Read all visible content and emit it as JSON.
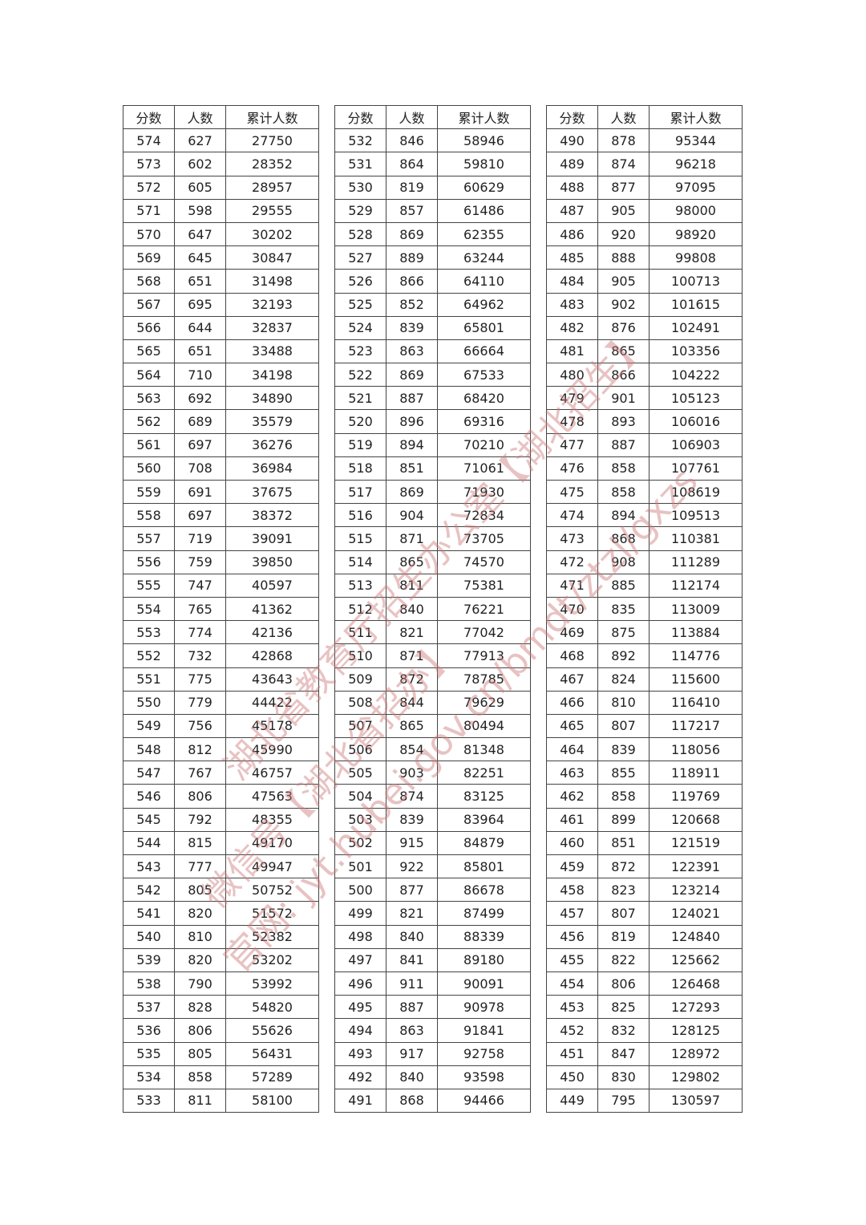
{
  "headers": [
    "分数",
    "人数",
    "累计人数"
  ],
  "tables": [
    {
      "rows": [
        [
          "574",
          "627",
          "27750"
        ],
        [
          "573",
          "602",
          "28352"
        ],
        [
          "572",
          "605",
          "28957"
        ],
        [
          "571",
          "598",
          "29555"
        ],
        [
          "570",
          "647",
          "30202"
        ],
        [
          "569",
          "645",
          "30847"
        ],
        [
          "568",
          "651",
          "31498"
        ],
        [
          "567",
          "695",
          "32193"
        ],
        [
          "566",
          "644",
          "32837"
        ],
        [
          "565",
          "651",
          "33488"
        ],
        [
          "564",
          "710",
          "34198"
        ],
        [
          "563",
          "692",
          "34890"
        ],
        [
          "562",
          "689",
          "35579"
        ],
        [
          "561",
          "697",
          "36276"
        ],
        [
          "560",
          "708",
          "36984"
        ],
        [
          "559",
          "691",
          "37675"
        ],
        [
          "558",
          "697",
          "38372"
        ],
        [
          "557",
          "719",
          "39091"
        ],
        [
          "556",
          "759",
          "39850"
        ],
        [
          "555",
          "747",
          "40597"
        ],
        [
          "554",
          "765",
          "41362"
        ],
        [
          "553",
          "774",
          "42136"
        ],
        [
          "552",
          "732",
          "42868"
        ],
        [
          "551",
          "775",
          "43643"
        ],
        [
          "550",
          "779",
          "44422"
        ],
        [
          "549",
          "756",
          "45178"
        ],
        [
          "548",
          "812",
          "45990"
        ],
        [
          "547",
          "767",
          "46757"
        ],
        [
          "546",
          "806",
          "47563"
        ],
        [
          "545",
          "792",
          "48355"
        ],
        [
          "544",
          "815",
          "49170"
        ],
        [
          "543",
          "777",
          "49947"
        ],
        [
          "542",
          "805",
          "50752"
        ],
        [
          "541",
          "820",
          "51572"
        ],
        [
          "540",
          "810",
          "52382"
        ],
        [
          "539",
          "820",
          "53202"
        ],
        [
          "538",
          "790",
          "53992"
        ],
        [
          "537",
          "828",
          "54820"
        ],
        [
          "536",
          "806",
          "55626"
        ],
        [
          "535",
          "805",
          "56431"
        ],
        [
          "534",
          "858",
          "57289"
        ],
        [
          "533",
          "811",
          "58100"
        ]
      ]
    },
    {
      "rows": [
        [
          "532",
          "846",
          "58946"
        ],
        [
          "531",
          "864",
          "59810"
        ],
        [
          "530",
          "819",
          "60629"
        ],
        [
          "529",
          "857",
          "61486"
        ],
        [
          "528",
          "869",
          "62355"
        ],
        [
          "527",
          "889",
          "63244"
        ],
        [
          "526",
          "866",
          "64110"
        ],
        [
          "525",
          "852",
          "64962"
        ],
        [
          "524",
          "839",
          "65801"
        ],
        [
          "523",
          "863",
          "66664"
        ],
        [
          "522",
          "869",
          "67533"
        ],
        [
          "521",
          "887",
          "68420"
        ],
        [
          "520",
          "896",
          "69316"
        ],
        [
          "519",
          "894",
          "70210"
        ],
        [
          "518",
          "851",
          "71061"
        ],
        [
          "517",
          "869",
          "71930"
        ],
        [
          "516",
          "904",
          "72834"
        ],
        [
          "515",
          "871",
          "73705"
        ],
        [
          "514",
          "865",
          "74570"
        ],
        [
          "513",
          "811",
          "75381"
        ],
        [
          "512",
          "840",
          "76221"
        ],
        [
          "511",
          "821",
          "77042"
        ],
        [
          "510",
          "871",
          "77913"
        ],
        [
          "509",
          "872",
          "78785"
        ],
        [
          "508",
          "844",
          "79629"
        ],
        [
          "507",
          "865",
          "80494"
        ],
        [
          "506",
          "854",
          "81348"
        ],
        [
          "505",
          "903",
          "82251"
        ],
        [
          "504",
          "874",
          "83125"
        ],
        [
          "503",
          "839",
          "83964"
        ],
        [
          "502",
          "915",
          "84879"
        ],
        [
          "501",
          "922",
          "85801"
        ],
        [
          "500",
          "877",
          "86678"
        ],
        [
          "499",
          "821",
          "87499"
        ],
        [
          "498",
          "840",
          "88339"
        ],
        [
          "497",
          "841",
          "89180"
        ],
        [
          "496",
          "911",
          "90091"
        ],
        [
          "495",
          "887",
          "90978"
        ],
        [
          "494",
          "863",
          "91841"
        ],
        [
          "493",
          "917",
          "92758"
        ],
        [
          "492",
          "840",
          "93598"
        ],
        [
          "491",
          "868",
          "94466"
        ]
      ]
    },
    {
      "rows": [
        [
          "490",
          "878",
          "95344"
        ],
        [
          "489",
          "874",
          "96218"
        ],
        [
          "488",
          "877",
          "97095"
        ],
        [
          "487",
          "905",
          "98000"
        ],
        [
          "486",
          "920",
          "98920"
        ],
        [
          "485",
          "888",
          "99808"
        ],
        [
          "484",
          "905",
          "100713"
        ],
        [
          "483",
          "902",
          "101615"
        ],
        [
          "482",
          "876",
          "102491"
        ],
        [
          "481",
          "865",
          "103356"
        ],
        [
          "480",
          "866",
          "104222"
        ],
        [
          "479",
          "901",
          "105123"
        ],
        [
          "478",
          "893",
          "106016"
        ],
        [
          "477",
          "887",
          "106903"
        ],
        [
          "476",
          "858",
          "107761"
        ],
        [
          "475",
          "858",
          "108619"
        ],
        [
          "474",
          "894",
          "109513"
        ],
        [
          "473",
          "868",
          "110381"
        ],
        [
          "472",
          "908",
          "111289"
        ],
        [
          "471",
          "885",
          "112174"
        ],
        [
          "470",
          "835",
          "113009"
        ],
        [
          "469",
          "875",
          "113884"
        ],
        [
          "468",
          "892",
          "114776"
        ],
        [
          "467",
          "824",
          "115600"
        ],
        [
          "466",
          "810",
          "116410"
        ],
        [
          "465",
          "807",
          "117217"
        ],
        [
          "464",
          "839",
          "118056"
        ],
        [
          "463",
          "855",
          "118911"
        ],
        [
          "462",
          "858",
          "119769"
        ],
        [
          "461",
          "899",
          "120668"
        ],
        [
          "460",
          "851",
          "121519"
        ],
        [
          "459",
          "872",
          "122391"
        ],
        [
          "458",
          "823",
          "123214"
        ],
        [
          "457",
          "807",
          "124021"
        ],
        [
          "456",
          "819",
          "124840"
        ],
        [
          "455",
          "822",
          "125662"
        ],
        [
          "454",
          "806",
          "126468"
        ],
        [
          "453",
          "825",
          "127293"
        ],
        [
          "452",
          "832",
          "128125"
        ],
        [
          "451",
          "847",
          "128972"
        ],
        [
          "450",
          "830",
          "129802"
        ],
        [
          "449",
          "795",
          "130597"
        ]
      ]
    }
  ],
  "watermark": {
    "line1": "湖北省教育厅招生办公室【湖北招生】",
    "line2": "微信号【湖北省招办】",
    "line3": "官网: jyt.hubei.gov.cn/bmdt/ztzl/gxzs"
  }
}
